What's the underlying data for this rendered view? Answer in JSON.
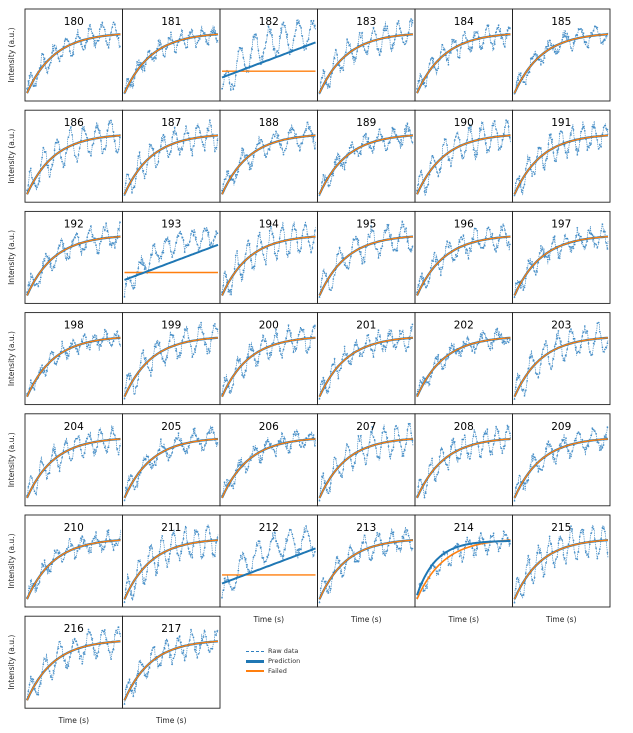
{
  "chart_data": {
    "type": "line",
    "grid_columns": 6,
    "y_axis_label": "Intensity (a.u.)",
    "x_axis_label": "Time (s)",
    "colors": {
      "raw": "#2f80c0",
      "prediction": "#1f77b4",
      "failed": "#ff7f0e"
    },
    "legend": {
      "position": "right of last row",
      "entries": [
        {
          "key": "raw",
          "label": "Raw data"
        },
        {
          "key": "prediction",
          "label": "Prediction"
        },
        {
          "key": "failed",
          "label": "Failed"
        }
      ]
    },
    "panels": [
      {
        "id": "180",
        "fit": "failed",
        "status": "ok"
      },
      {
        "id": "181",
        "fit": "failed",
        "status": "ok"
      },
      {
        "id": "182",
        "fit": "prediction",
        "status": "failed"
      },
      {
        "id": "183",
        "fit": "failed",
        "status": "ok"
      },
      {
        "id": "184",
        "fit": "failed",
        "status": "ok"
      },
      {
        "id": "185",
        "fit": "failed",
        "status": "ok"
      },
      {
        "id": "186",
        "fit": "failed",
        "status": "ok"
      },
      {
        "id": "187",
        "fit": "failed",
        "status": "ok"
      },
      {
        "id": "188",
        "fit": "failed",
        "status": "ok"
      },
      {
        "id": "189",
        "fit": "failed",
        "status": "ok"
      },
      {
        "id": "190",
        "fit": "failed",
        "status": "ok"
      },
      {
        "id": "191",
        "fit": "failed",
        "status": "ok"
      },
      {
        "id": "192",
        "fit": "failed",
        "status": "ok"
      },
      {
        "id": "193",
        "fit": "prediction",
        "status": "failed"
      },
      {
        "id": "194",
        "fit": "failed",
        "status": "ok"
      },
      {
        "id": "195",
        "fit": "failed",
        "status": "ok"
      },
      {
        "id": "196",
        "fit": "failed",
        "status": "ok"
      },
      {
        "id": "197",
        "fit": "failed",
        "status": "ok"
      },
      {
        "id": "198",
        "fit": "failed",
        "status": "ok"
      },
      {
        "id": "199",
        "fit": "failed",
        "status": "ok"
      },
      {
        "id": "200",
        "fit": "failed",
        "status": "ok"
      },
      {
        "id": "201",
        "fit": "failed",
        "status": "ok"
      },
      {
        "id": "202",
        "fit": "failed",
        "status": "ok"
      },
      {
        "id": "203",
        "fit": "failed",
        "status": "ok"
      },
      {
        "id": "204",
        "fit": "failed",
        "status": "ok"
      },
      {
        "id": "205",
        "fit": "failed",
        "status": "ok"
      },
      {
        "id": "206",
        "fit": "failed",
        "status": "ok"
      },
      {
        "id": "207",
        "fit": "failed",
        "status": "ok"
      },
      {
        "id": "208",
        "fit": "failed",
        "status": "ok"
      },
      {
        "id": "209",
        "fit": "failed",
        "status": "ok"
      },
      {
        "id": "210",
        "fit": "failed",
        "status": "ok"
      },
      {
        "id": "211",
        "fit": "failed",
        "status": "ok"
      },
      {
        "id": "212",
        "fit": "prediction",
        "status": "failed"
      },
      {
        "id": "213",
        "fit": "failed",
        "status": "ok"
      },
      {
        "id": "214",
        "fit": "prediction",
        "status": "ok"
      },
      {
        "id": "215",
        "fit": "failed",
        "status": "ok"
      },
      {
        "id": "216",
        "fit": "failed",
        "status": "ok"
      },
      {
        "id": "217",
        "fit": "failed",
        "status": "ok"
      }
    ]
  }
}
